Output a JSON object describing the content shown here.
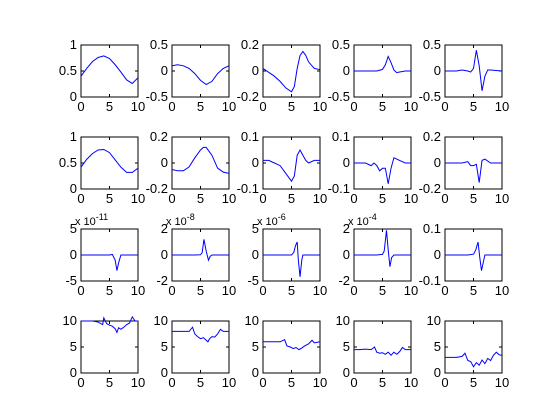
{
  "chart_data": {
    "type": "line",
    "layout": {
      "rows": 4,
      "cols": 5
    },
    "line_color": "#0000ff",
    "axis_color": "#000000",
    "background": "#ffffff",
    "grid": false,
    "panels": [
      {
        "id": "r1c1",
        "xlim": [
          0,
          10
        ],
        "ylim": [
          0,
          1
        ],
        "yticks": [
          "0",
          "0.5",
          "1"
        ],
        "xticks": [
          "0",
          "5",
          "10"
        ],
        "exponent": "",
        "x": [
          0,
          1,
          2,
          3,
          4,
          5,
          6,
          7,
          8,
          9,
          10
        ],
        "y": [
          0.4,
          0.55,
          0.68,
          0.76,
          0.79,
          0.74,
          0.62,
          0.48,
          0.33,
          0.26,
          0.37
        ]
      },
      {
        "id": "r1c2",
        "xlim": [
          0,
          10
        ],
        "ylim": [
          -0.5,
          0.5
        ],
        "yticks": [
          "-0.5",
          "0",
          "0.5"
        ],
        "xticks": [
          "0",
          "5",
          "10"
        ],
        "exponent": "",
        "x": [
          0,
          1,
          2,
          3,
          4,
          5,
          6,
          7,
          8,
          9,
          10
        ],
        "y": [
          0.1,
          0.12,
          0.1,
          0.05,
          -0.05,
          -0.18,
          -0.26,
          -0.2,
          -0.05,
          0.05,
          0.1
        ]
      },
      {
        "id": "r1c3",
        "xlim": [
          0,
          10
        ],
        "ylim": [
          -0.2,
          0.2
        ],
        "yticks": [
          "-0.2",
          "0",
          "0.2"
        ],
        "xticks": [
          "0",
          "5",
          "10"
        ],
        "exponent": "",
        "x": [
          0,
          1,
          2,
          3,
          4,
          5,
          5.5,
          6,
          6.5,
          7,
          7.5,
          8,
          9,
          10
        ],
        "y": [
          0.02,
          -0.01,
          -0.04,
          -0.08,
          -0.13,
          -0.16,
          -0.12,
          0.02,
          0.12,
          0.15,
          0.12,
          0.07,
          0.02,
          0.01
        ]
      },
      {
        "id": "r1c4",
        "xlim": [
          0,
          10
        ],
        "ylim": [
          -0.5,
          0.5
        ],
        "yticks": [
          "-0.5",
          "0",
          "0.5"
        ],
        "xticks": [
          "0",
          "5",
          "10"
        ],
        "exponent": "",
        "x": [
          0,
          1,
          2,
          3,
          4,
          5,
          5.5,
          6,
          6.5,
          7,
          7.5,
          8,
          9,
          10
        ],
        "y": [
          0,
          0,
          0,
          0,
          0,
          0.03,
          0.12,
          0.28,
          0.16,
          0.02,
          -0.03,
          -0.02,
          0,
          0
        ]
      },
      {
        "id": "r1c5",
        "xlim": [
          0,
          10
        ],
        "ylim": [
          -0.5,
          0.5
        ],
        "yticks": [
          "-0.5",
          "0",
          "0.5"
        ],
        "xticks": [
          "0",
          "5",
          "10"
        ],
        "exponent": "",
        "x": [
          0,
          1,
          2,
          3,
          4,
          4.5,
          5,
          5.5,
          6,
          6.5,
          7,
          7.5,
          8,
          9,
          10
        ],
        "y": [
          0,
          0,
          0,
          0.02,
          0,
          -0.02,
          0.05,
          0.4,
          0.1,
          -0.38,
          -0.1,
          0.02,
          0.02,
          0.01,
          0
        ]
      },
      {
        "id": "r2c1",
        "xlim": [
          0,
          10
        ],
        "ylim": [
          0,
          1
        ],
        "yticks": [
          "0",
          "0.5",
          "1"
        ],
        "xticks": [
          "0",
          "5",
          "10"
        ],
        "exponent": "",
        "x": [
          0,
          1,
          2,
          3,
          4,
          5,
          6,
          7,
          8,
          9,
          10
        ],
        "y": [
          0.42,
          0.57,
          0.68,
          0.75,
          0.76,
          0.7,
          0.56,
          0.42,
          0.32,
          0.32,
          0.4
        ]
      },
      {
        "id": "r2c2",
        "xlim": [
          0,
          10
        ],
        "ylim": [
          -0.2,
          0.2
        ],
        "yticks": [
          "-0.2",
          "0",
          "0.2"
        ],
        "xticks": [
          "0",
          "5",
          "10"
        ],
        "exponent": "",
        "x": [
          0,
          1,
          2,
          3,
          4,
          5,
          5.5,
          6,
          7,
          8,
          9,
          10
        ],
        "y": [
          -0.05,
          -0.06,
          -0.06,
          -0.03,
          0.04,
          0.1,
          0.12,
          0.12,
          0.06,
          -0.04,
          -0.07,
          -0.08
        ]
      },
      {
        "id": "r2c3",
        "xlim": [
          0,
          10
        ],
        "ylim": [
          -0.1,
          0.1
        ],
        "yticks": [
          "-0.1",
          "0",
          "0.1"
        ],
        "xticks": [
          "0",
          "5",
          "10"
        ],
        "exponent": "",
        "x": [
          0,
          1,
          2,
          3,
          4,
          5,
          5.5,
          6,
          6.5,
          7,
          7.5,
          8,
          9,
          10
        ],
        "y": [
          0.01,
          0.01,
          0,
          -0.01,
          -0.04,
          -0.07,
          -0.05,
          0.03,
          0.05,
          0.03,
          0.01,
          0,
          0.01,
          0.01
        ]
      },
      {
        "id": "r2c4",
        "xlim": [
          0,
          10
        ],
        "ylim": [
          -0.1,
          0.1
        ],
        "yticks": [
          "-0.1",
          "0",
          "0.1"
        ],
        "xticks": [
          "0",
          "5",
          "10"
        ],
        "exponent": "",
        "x": [
          0,
          1,
          2,
          3,
          3.5,
          4,
          4.5,
          5,
          5.5,
          6,
          6.5,
          7,
          8,
          9,
          10
        ],
        "y": [
          0,
          0,
          0,
          -0.01,
          0,
          -0.01,
          -0.03,
          -0.02,
          -0.02,
          -0.08,
          -0.02,
          0.02,
          0.01,
          0,
          0
        ]
      },
      {
        "id": "r2c5",
        "xlim": [
          0,
          10
        ],
        "ylim": [
          -0.2,
          0.2
        ],
        "yticks": [
          "-0.2",
          "0",
          "0.2"
        ],
        "xticks": [
          "0",
          "5",
          "10"
        ],
        "exponent": "",
        "x": [
          0,
          1,
          2,
          3,
          4,
          4.5,
          5,
          5.5,
          6,
          6.5,
          7,
          8,
          9,
          10
        ],
        "y": [
          0,
          0,
          0,
          0,
          0.01,
          -0.02,
          -0.02,
          -0.01,
          -0.15,
          0.02,
          0.03,
          0,
          0,
          0
        ]
      },
      {
        "id": "r3c1",
        "xlim": [
          0,
          10
        ],
        "ylim": [
          -5,
          5
        ],
        "yticks": [
          "-5",
          "0",
          "5"
        ],
        "xticks": [
          "0",
          "5",
          "10"
        ],
        "exponent": "-11",
        "x": [
          0,
          1,
          2,
          3,
          4,
          5,
          5.5,
          6,
          6.3,
          6.6,
          7,
          8,
          9,
          10
        ],
        "y": [
          0,
          0,
          0,
          0,
          0,
          0,
          0.1,
          -1,
          -3,
          -1.5,
          0,
          0,
          0,
          0
        ]
      },
      {
        "id": "r3c2",
        "xlim": [
          0,
          10
        ],
        "ylim": [
          -2,
          2
        ],
        "yticks": [
          "-2",
          "0",
          "2"
        ],
        "xticks": [
          "0",
          "5",
          "10"
        ],
        "exponent": "-8",
        "x": [
          0,
          1,
          2,
          3,
          4,
          5,
          5.3,
          5.6,
          6,
          6.4,
          6.7,
          7,
          8,
          9,
          10
        ],
        "y": [
          0,
          0,
          0,
          0,
          0,
          0.02,
          0.2,
          1.2,
          0.3,
          -0.4,
          -0.1,
          0,
          0,
          0,
          0
        ]
      },
      {
        "id": "r3c3",
        "xlim": [
          0,
          10
        ],
        "ylim": [
          -5,
          5
        ],
        "yticks": [
          "-5",
          "0",
          "5"
        ],
        "xticks": [
          "0",
          "5",
          "10"
        ],
        "exponent": "-6",
        "x": [
          0,
          1,
          2,
          3,
          4,
          5,
          5.4,
          5.7,
          6,
          6.2,
          6.5,
          6.8,
          7,
          8,
          9,
          10
        ],
        "y": [
          0,
          0,
          0,
          0,
          0,
          0,
          0.5,
          1.8,
          2.5,
          -1,
          -4.2,
          -1,
          0,
          0,
          0,
          0
        ]
      },
      {
        "id": "r3c4",
        "xlim": [
          0,
          10
        ],
        "ylim": [
          -2,
          2
        ],
        "yticks": [
          "-2",
          "0",
          "2"
        ],
        "xticks": [
          "0",
          "5",
          "10"
        ],
        "exponent": "-4",
        "x": [
          0,
          1,
          2,
          3,
          4,
          5,
          5.3,
          5.7,
          6,
          6.3,
          6.6,
          7,
          8,
          9,
          10
        ],
        "y": [
          0,
          0,
          0,
          0,
          0,
          0.05,
          0.3,
          1.9,
          0.4,
          -0.9,
          -0.2,
          0,
          0,
          0,
          0
        ]
      },
      {
        "id": "r3c5",
        "xlim": [
          0,
          10
        ],
        "ylim": [
          -0.1,
          0.1
        ],
        "yticks": [
          "-0.1",
          "0",
          "0.1"
        ],
        "xticks": [
          "0",
          "5",
          "10"
        ],
        "exponent": "",
        "x": [
          0,
          1,
          2,
          3,
          4,
          5,
          5.4,
          5.8,
          6.1,
          6.4,
          6.8,
          7,
          8,
          9,
          10
        ],
        "y": [
          0,
          0,
          0,
          0,
          0,
          0.003,
          0.02,
          0.05,
          -0.01,
          -0.06,
          -0.02,
          0,
          0,
          0,
          0
        ]
      },
      {
        "id": "r4c1",
        "xlim": [
          0,
          10
        ],
        "ylim": [
          0,
          10
        ],
        "yticks": [
          "0",
          "5",
          "10"
        ],
        "xticks": [
          "0",
          "5",
          "10"
        ],
        "exponent": "",
        "x": [
          0,
          1,
          2,
          3,
          3.8,
          4,
          4.5,
          5,
          5.5,
          6,
          6.3,
          6.6,
          7,
          7.5,
          8,
          8.5,
          9,
          9.5,
          10
        ],
        "y": [
          10,
          10,
          10,
          9.8,
          9.3,
          10.6,
          9.5,
          9.2,
          9,
          8.5,
          7.8,
          8.7,
          8.4,
          8.8,
          9.3,
          9.6,
          10.8,
          10,
          10
        ]
      },
      {
        "id": "r4c2",
        "xlim": [
          0,
          10
        ],
        "ylim": [
          0,
          10
        ],
        "yticks": [
          "0",
          "5",
          "10"
        ],
        "xticks": [
          "0",
          "5",
          "10"
        ],
        "exponent": "",
        "x": [
          0,
          1,
          2,
          3,
          3.6,
          4,
          4.5,
          5,
          5.5,
          6,
          6.3,
          6.6,
          7,
          7.5,
          8,
          8.5,
          9,
          10
        ],
        "y": [
          8,
          8,
          8,
          8,
          8.8,
          7.5,
          7,
          6.6,
          6.8,
          6.3,
          6,
          6.6,
          7,
          6.9,
          7.5,
          8.4,
          8,
          8
        ]
      },
      {
        "id": "r4c3",
        "xlim": [
          0,
          10
        ],
        "ylim": [
          0,
          10
        ],
        "yticks": [
          "0",
          "5",
          "10"
        ],
        "xticks": [
          "0",
          "5",
          "10"
        ],
        "exponent": "",
        "x": [
          0,
          1,
          2,
          3,
          3.8,
          4.2,
          4.8,
          5.3,
          5.8,
          6.3,
          6.8,
          7.3,
          8,
          8.6,
          9,
          10
        ],
        "y": [
          6,
          6,
          6,
          6,
          6.4,
          5.2,
          5,
          4.7,
          4.9,
          4.5,
          4.8,
          5.2,
          5.6,
          6.3,
          5.8,
          6
        ]
      },
      {
        "id": "r4c4",
        "xlim": [
          0,
          10
        ],
        "ylim": [
          0,
          10
        ],
        "yticks": [
          "0",
          "5",
          "10"
        ],
        "xticks": [
          "0",
          "5",
          "10"
        ],
        "exponent": "",
        "x": [
          0,
          1,
          2,
          3,
          3.6,
          4,
          4.5,
          5,
          5.5,
          6,
          6.5,
          7,
          7.5,
          8,
          8.5,
          9,
          10
        ],
        "y": [
          4.5,
          4.5,
          4.6,
          4.5,
          5,
          4,
          3.8,
          3.9,
          3.6,
          4,
          3.4,
          4,
          3.6,
          4.1,
          4.9,
          4.5,
          4.5
        ]
      },
      {
        "id": "r4c5",
        "xlim": [
          0,
          10
        ],
        "ylim": [
          0,
          10
        ],
        "yticks": [
          "0",
          "5",
          "10"
        ],
        "xticks": [
          "0",
          "5",
          "10"
        ],
        "exponent": "",
        "x": [
          0,
          1,
          2,
          3,
          3.5,
          4,
          4.5,
          5,
          5.5,
          6,
          6.5,
          7,
          7.5,
          8,
          8.5,
          9,
          9.5,
          10
        ],
        "y": [
          3,
          3,
          3,
          3.2,
          3.8,
          2.4,
          2.2,
          1.2,
          2,
          1.5,
          2.5,
          1.8,
          2.8,
          2.4,
          3.4,
          4,
          3.5,
          3.4
        ]
      }
    ]
  }
}
